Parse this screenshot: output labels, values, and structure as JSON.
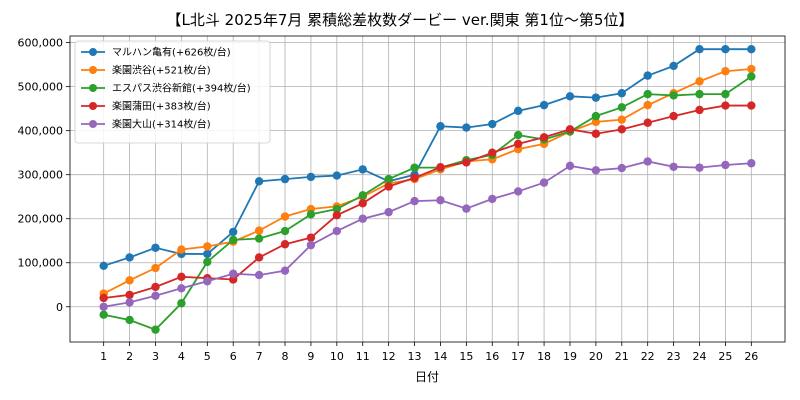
{
  "chart_data": {
    "type": "line",
    "title": "【L北斗 2025年7月  累積総差枚数ダービー ver.関東 第1位〜第5位】",
    "xlabel": "日付",
    "ylabel": "",
    "x": [
      1,
      2,
      3,
      4,
      5,
      6,
      7,
      8,
      9,
      10,
      11,
      12,
      13,
      14,
      15,
      16,
      17,
      18,
      19,
      20,
      21,
      22,
      23,
      24,
      25,
      26
    ],
    "xlim": [
      -0.3,
      27.3
    ],
    "ylim": [
      -80000,
      615000
    ],
    "yticks": [
      0,
      100000,
      200000,
      300000,
      400000,
      500000,
      600000
    ],
    "ytick_labels": [
      "0",
      "100,000",
      "200,000",
      "300,000",
      "400,000",
      "500,000",
      "600,000"
    ],
    "grid": true,
    "legend_position": "top-left",
    "series": [
      {
        "name": "マルハン亀有(+626枚/台)",
        "color": "#1f77b4",
        "values": [
          93000,
          112000,
          134000,
          120000,
          120000,
          170000,
          285000,
          290000,
          295000,
          298000,
          312000,
          285000,
          300000,
          410000,
          407000,
          415000,
          445000,
          458000,
          478000,
          475000,
          485000,
          525000,
          547000,
          585000,
          585000,
          585000
        ]
      },
      {
        "name": "楽園渋谷(+521枚/台)",
        "color": "#ff7f0e",
        "values": [
          30000,
          60000,
          88000,
          130000,
          137000,
          148000,
          173000,
          205000,
          222000,
          228000,
          250000,
          280000,
          290000,
          312000,
          330000,
          335000,
          358000,
          370000,
          398000,
          420000,
          425000,
          458000,
          485000,
          512000,
          535000,
          540000
        ]
      },
      {
        "name": "エスパス渋谷新館(+394枚/台)",
        "color": "#2ca02c",
        "values": [
          -18000,
          -30000,
          -52000,
          8000,
          102000,
          152000,
          155000,
          172000,
          210000,
          222000,
          253000,
          290000,
          316000,
          316000,
          333000,
          345000,
          390000,
          380000,
          398000,
          433000,
          453000,
          483000,
          480000,
          483000,
          483000,
          523000
        ]
      },
      {
        "name": "楽園蒲田(+383枚/台)",
        "color": "#d62728",
        "values": [
          20000,
          27000,
          45000,
          68000,
          65000,
          62000,
          112000,
          142000,
          157000,
          208000,
          235000,
          273000,
          293000,
          317000,
          328000,
          350000,
          370000,
          385000,
          403000,
          393000,
          403000,
          418000,
          433000,
          447000,
          457000,
          457000
        ]
      },
      {
        "name": "楽園大山(+314枚/台)",
        "color": "#9467bd",
        "values": [
          0,
          10000,
          25000,
          42000,
          58000,
          75000,
          72000,
          82000,
          140000,
          172000,
          200000,
          215000,
          240000,
          242000,
          223000,
          245000,
          262000,
          282000,
          320000,
          310000,
          315000,
          330000,
          318000,
          316000,
          322000,
          326000
        ]
      }
    ]
  }
}
